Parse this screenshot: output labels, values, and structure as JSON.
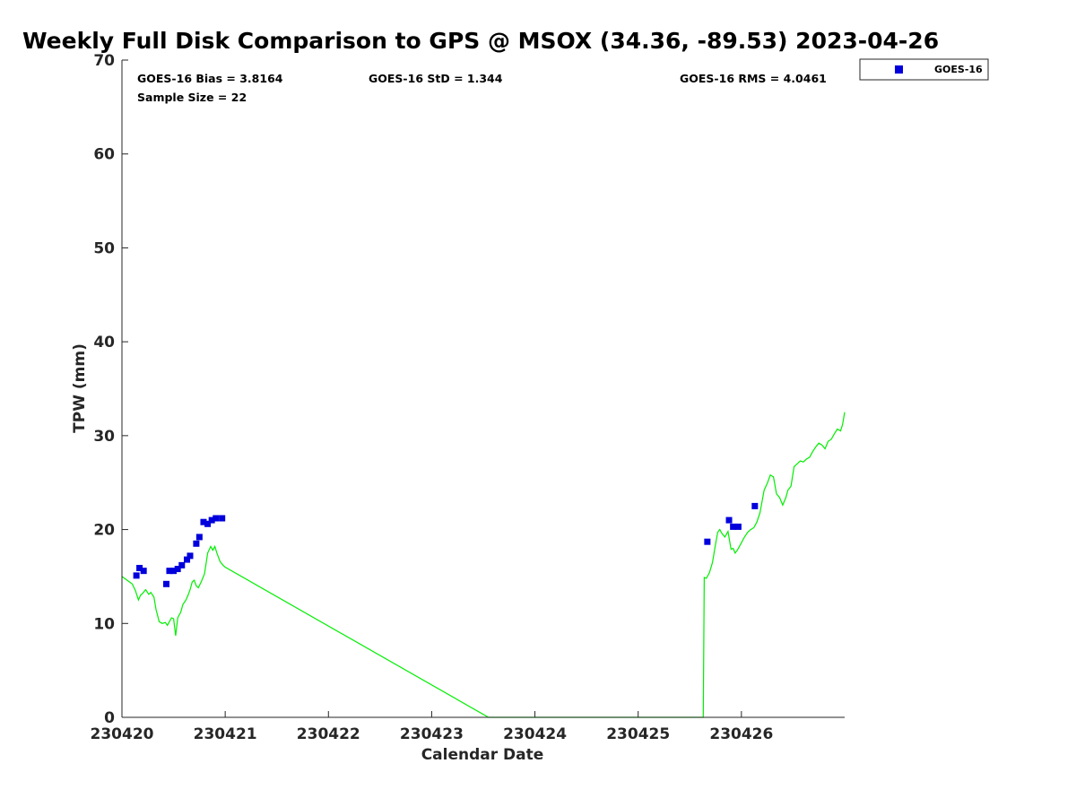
{
  "chart_data": {
    "type": "scatter",
    "title": "Weekly Full Disk Comparison to GPS @ MSOX (34.36, -89.53) 2023-04-26",
    "xlabel": "Calendar Date",
    "ylabel": "TPW (mm)",
    "xlim": [
      230420,
      230427
    ],
    "ylim": [
      0,
      70
    ],
    "x_ticks": [
      "230420",
      "230421",
      "230422",
      "230423",
      "230424",
      "230425",
      "230426"
    ],
    "y_ticks": [
      "0",
      "10",
      "20",
      "30",
      "40",
      "50",
      "60",
      "70"
    ],
    "grid": false,
    "legend_position": "outside-top-right",
    "stats": {
      "bias": "GOES-16 Bias = 3.8164",
      "std": "GOES-16 StD = 1.344",
      "rms": "GOES-16 RMS = 4.0461",
      "sample_size": "Sample Size = 22"
    },
    "series": [
      {
        "name": "GOES-16",
        "kind": "scatter",
        "marker": "square",
        "color": "#0000dd",
        "x": [
          230420.14,
          230420.17,
          230420.21,
          230420.43,
          230420.46,
          230420.5,
          230420.54,
          230420.58,
          230420.63,
          230420.66,
          230420.72,
          230420.75,
          230420.79,
          230420.83,
          230420.87,
          230420.91,
          230420.97,
          230425.67,
          230425.88,
          230425.92,
          230425.97,
          230426.13
        ],
        "y": [
          15.1,
          15.9,
          15.6,
          14.2,
          15.6,
          15.6,
          15.8,
          16.2,
          16.8,
          17.2,
          18.5,
          19.2,
          20.8,
          20.6,
          21.0,
          21.2,
          21.2,
          18.7,
          21.0,
          20.3,
          20.3,
          22.5
        ]
      },
      {
        "kind": "line",
        "color": "#00ee00",
        "x": [
          230420.0,
          230420.05,
          230420.1,
          230420.13,
          230420.16,
          230420.18,
          230420.2,
          230420.23,
          230420.26,
          230420.28,
          230420.31,
          230420.33,
          230420.36,
          230420.39,
          230420.42,
          230420.44,
          230420.46,
          230420.48,
          230420.5,
          230420.52,
          230420.54,
          230420.55,
          230420.57,
          230420.59,
          230420.62,
          230420.64,
          230420.66,
          230420.68,
          230420.7,
          230420.72,
          230420.74,
          230420.77,
          230420.8,
          230420.83,
          230420.86,
          230420.88,
          230420.9,
          230420.92,
          230420.95,
          230420.98,
          230421.0,
          230423.55,
          230425.63,
          230425.64,
          230425.66,
          230425.69,
          230425.72,
          230425.75,
          230425.77,
          230425.79,
          230425.81,
          230425.84,
          230425.87,
          230425.9,
          230425.92,
          230425.94,
          230425.96,
          230425.98,
          230426.0,
          230426.03,
          230426.06,
          230426.09,
          230426.12,
          230426.15,
          230426.18,
          230426.2,
          230426.22,
          230426.25,
          230426.28,
          230426.31,
          230426.34,
          230426.37,
          230426.4,
          230426.43,
          230426.45,
          230426.48,
          230426.51,
          230426.54,
          230426.57,
          230426.6,
          230426.63,
          230426.66,
          230426.69,
          230426.72,
          230426.75,
          230426.78,
          230426.81,
          230426.84,
          230426.87,
          230426.9,
          230426.93,
          230426.96,
          230426.98,
          230427.0
        ],
        "y": [
          15.0,
          14.6,
          14.2,
          13.5,
          12.5,
          13.0,
          13.2,
          13.6,
          13.1,
          13.3,
          12.8,
          11.5,
          10.2,
          10.0,
          10.1,
          9.8,
          10.2,
          10.6,
          10.5,
          8.7,
          10.6,
          10.8,
          11.2,
          12.0,
          12.5,
          13.0,
          13.6,
          14.4,
          14.6,
          14.0,
          13.8,
          14.5,
          15.3,
          17.5,
          18.2,
          17.8,
          18.2,
          17.5,
          16.6,
          16.2,
          16.0,
          0.0,
          0.0,
          14.9,
          14.8,
          15.4,
          16.5,
          18.5,
          19.7,
          20.0,
          19.6,
          19.2,
          19.8,
          17.9,
          18.0,
          17.5,
          17.8,
          18.2,
          18.6,
          19.2,
          19.7,
          20.0,
          20.2,
          20.8,
          21.8,
          23.0,
          24.2,
          24.9,
          25.8,
          25.6,
          23.8,
          23.4,
          22.6,
          23.4,
          24.2,
          24.6,
          26.7,
          27.0,
          27.3,
          27.2,
          27.5,
          27.7,
          28.3,
          28.8,
          29.2,
          29.0,
          28.6,
          29.4,
          29.6,
          30.2,
          30.7,
          30.5,
          31.2,
          32.5
        ]
      }
    ]
  }
}
